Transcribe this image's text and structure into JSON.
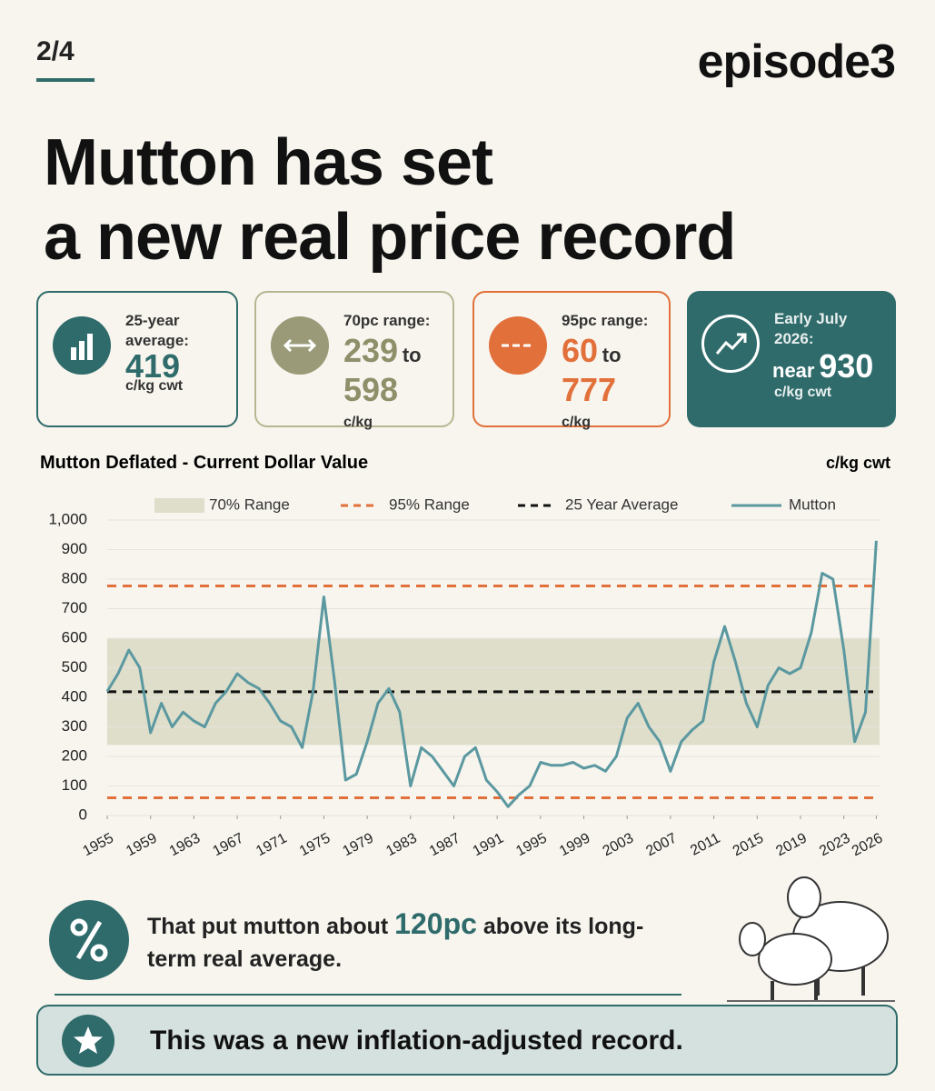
{
  "header": {
    "page": "2/4",
    "brand": "episode3",
    "title_lines": [
      "Mutton has set",
      "a new real price record"
    ]
  },
  "cards": [
    {
      "label": "25-year average:",
      "value": "419",
      "unit": "c/kg cwt"
    },
    {
      "label": "70pc range:",
      "low": "239",
      "joiner": "to",
      "high": "598",
      "unit": "c/kg"
    },
    {
      "label": "95pc range:",
      "low": "60",
      "joiner": "to",
      "high": "777",
      "unit": "c/kg"
    },
    {
      "label": "Early July 2026:",
      "prefix": "near",
      "value": "930",
      "unit": "c/kg cwt"
    }
  ],
  "chart_data": {
    "type": "line",
    "title": "Mutton Deflated - Current Dollar Value",
    "unit_label": "c/kg cwt",
    "x": [
      1955,
      1956,
      1957,
      1958,
      1959,
      1960,
      1961,
      1962,
      1963,
      1964,
      1965,
      1966,
      1967,
      1968,
      1969,
      1970,
      1971,
      1972,
      1973,
      1974,
      1975,
      1976,
      1977,
      1978,
      1979,
      1980,
      1981,
      1982,
      1983,
      1984,
      1985,
      1986,
      1987,
      1988,
      1989,
      1990,
      1991,
      1992,
      1993,
      1994,
      1995,
      1996,
      1997,
      1998,
      1999,
      2000,
      2001,
      2002,
      2003,
      2004,
      2005,
      2006,
      2007,
      2008,
      2009,
      2010,
      2011,
      2012,
      2013,
      2014,
      2015,
      2016,
      2017,
      2018,
      2019,
      2020,
      2021,
      2022,
      2023,
      2024,
      2025,
      2026
    ],
    "series": [
      {
        "name": "Mutton",
        "color": "#5b98a0",
        "values": [
          420,
          480,
          560,
          500,
          280,
          380,
          300,
          350,
          320,
          300,
          380,
          420,
          480,
          450,
          430,
          380,
          320,
          300,
          230,
          420,
          740,
          450,
          120,
          140,
          250,
          380,
          430,
          350,
          100,
          230,
          200,
          150,
          100,
          200,
          230,
          120,
          80,
          30,
          70,
          100,
          180,
          170,
          170,
          180,
          160,
          170,
          150,
          200,
          330,
          380,
          300,
          250,
          150,
          250,
          290,
          320,
          520,
          640,
          520,
          380,
          300,
          440,
          500,
          480,
          500,
          620,
          820,
          800,
          560,
          250,
          350,
          930
        ]
      }
    ],
    "bands": [
      {
        "name": "70% Range",
        "color": "#dedecb",
        "values": [
          239,
          598
        ]
      }
    ],
    "reference_lines": [
      {
        "name": "95% Range",
        "color": "#e2703a",
        "values": [
          60,
          777
        ]
      },
      {
        "name": "25 Year Average",
        "color": "#111111",
        "values": [
          419
        ]
      }
    ],
    "xlim": [
      1955,
      2026.3
    ],
    "xticks": [
      1955,
      1959,
      1963,
      1967,
      1971,
      1975,
      1979,
      1983,
      1987,
      1991,
      1995,
      1999,
      2003,
      2007,
      2011,
      2015,
      2019,
      2023,
      2026
    ],
    "ylim": [
      0,
      1000
    ],
    "yticks": [
      0,
      100,
      200,
      300,
      400,
      500,
      600,
      700,
      800,
      900,
      {
        "value": 1000,
        "label": "1,000"
      }
    ],
    "grid": true
  },
  "notes": {
    "comparison": {
      "before": "That put mutton about",
      "highlight": "120pc",
      "after": "above its long-term real average."
    },
    "banner": "This was a new inflation-adjusted record."
  }
}
